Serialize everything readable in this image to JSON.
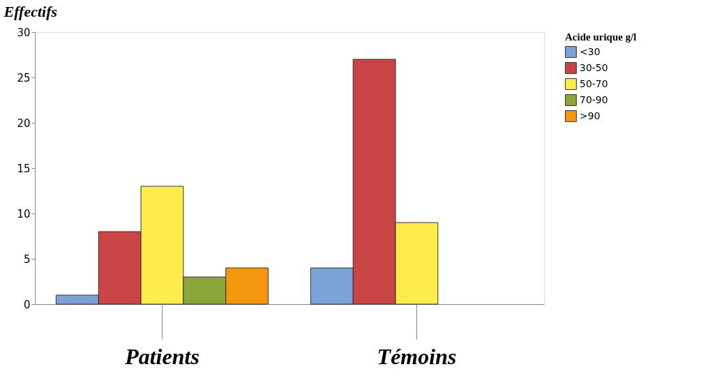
{
  "chart_data": {
    "type": "bar",
    "ylabel": "Effectifs",
    "legend_title": "Acide urique g/l",
    "categories": [
      "Patients",
      "Témoins"
    ],
    "series": [
      {
        "name": "<30",
        "color": "#7ba3d8",
        "values": [
          1,
          4
        ]
      },
      {
        "name": "30-50",
        "color": "#c94444",
        "values": [
          8,
          27
        ]
      },
      {
        "name": "50-70",
        "color": "#ffeb4a",
        "values": [
          13,
          9
        ]
      },
      {
        "name": "70-90",
        "color": "#8aa53a",
        "values": [
          3,
          null
        ]
      },
      {
        "name": ">90",
        "color": "#f5960f",
        "values": [
          4,
          null
        ]
      }
    ],
    "ylim": [
      0,
      30
    ],
    "yticks": [
      0,
      5,
      10,
      15,
      20,
      25,
      30
    ],
    "grid": false,
    "legend": "right"
  }
}
